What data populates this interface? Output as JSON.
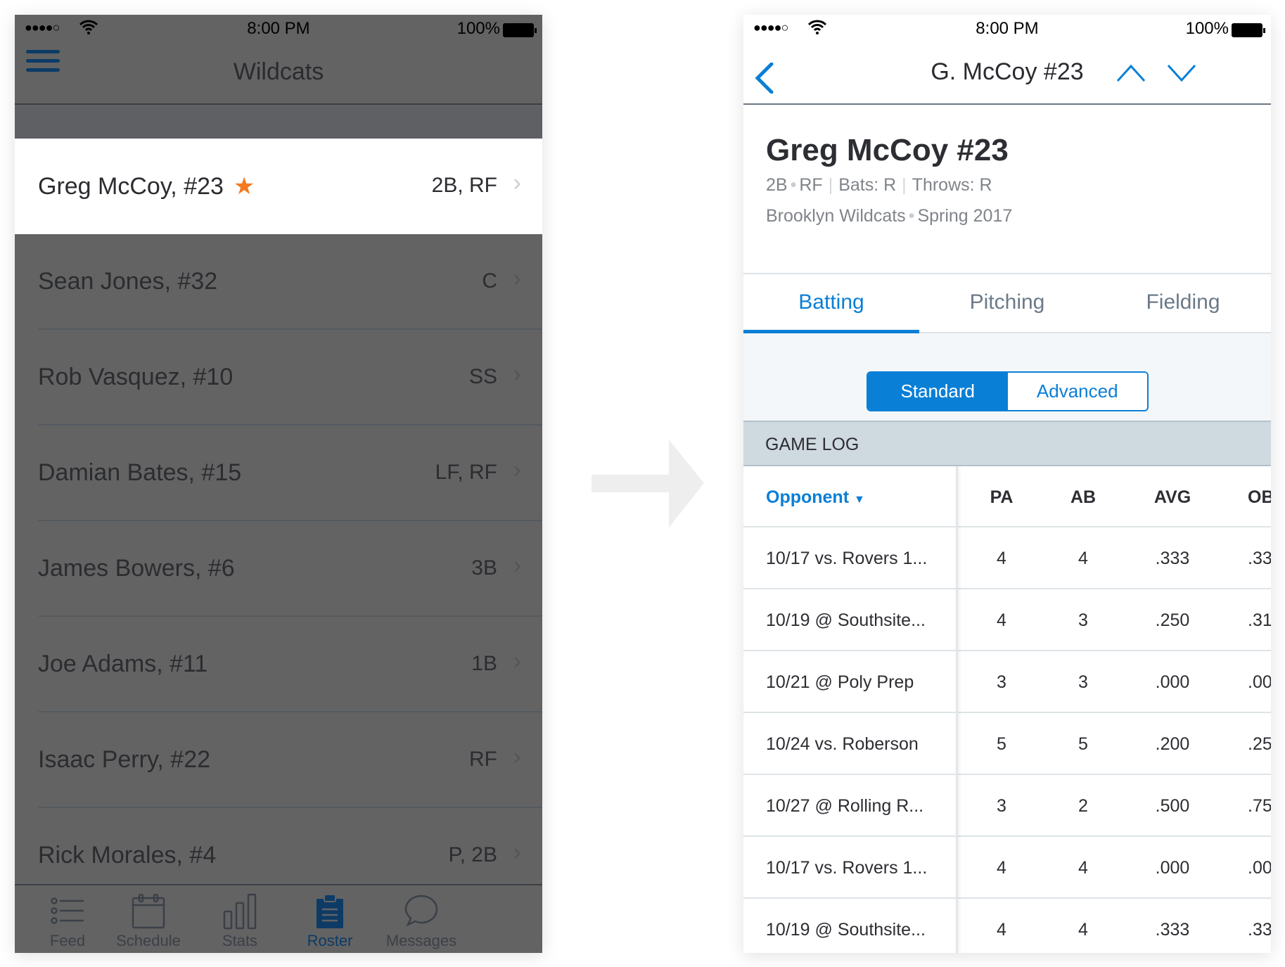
{
  "status": {
    "time": "8:00 PM",
    "battery": "100%",
    "signal": "●●●●○"
  },
  "left": {
    "title": "Wildcats",
    "players": [
      {
        "name": "Greg McCoy, #23",
        "pos": "2B, RF",
        "starred": true,
        "selected": true
      },
      {
        "name": "Sean Jones, #32",
        "pos": "C"
      },
      {
        "name": "Rob Vasquez, #10",
        "pos": "SS"
      },
      {
        "name": "Damian Bates, #15",
        "pos": "LF, RF"
      },
      {
        "name": "James Bowers, #6",
        "pos": "3B"
      },
      {
        "name": "Joe Adams, #11",
        "pos": "1B"
      },
      {
        "name": "Isaac Perry, #22",
        "pos": "RF"
      },
      {
        "name": "Rick Morales, #4",
        "pos": "P, 2B"
      }
    ],
    "tabs": [
      {
        "label": "Feed",
        "icon": "list-icon"
      },
      {
        "label": "Schedule",
        "icon": "calendar-icon"
      },
      {
        "label": "Stats",
        "icon": "bar-chart-icon"
      },
      {
        "label": "Roster",
        "icon": "clipboard-icon",
        "active": true
      },
      {
        "label": "Messages",
        "icon": "chat-bubble-icon"
      }
    ]
  },
  "right": {
    "nav_title": "G. McCoy #23",
    "name": "Greg McCoy #23",
    "pos1": "2B",
    "pos2": "RF",
    "bats": "Bats: R",
    "throws": "Throws: R",
    "team": "Brooklyn Wildcats",
    "season": "Spring 2017",
    "tabs": [
      "Batting",
      "Pitching",
      "Fielding"
    ],
    "segments": [
      "Standard",
      "Advanced"
    ],
    "section": "GAME LOG",
    "columns": [
      "Opponent",
      "PA",
      "AB",
      "AVG",
      "OB"
    ],
    "rows": [
      [
        "10/17 vs. Rovers 1...",
        "4",
        "4",
        ".333",
        ".33"
      ],
      [
        "10/19 @ Southsite...",
        "4",
        "3",
        ".250",
        ".31"
      ],
      [
        "10/21 @ Poly Prep",
        "3",
        "3",
        ".000",
        ".00"
      ],
      [
        "10/24 vs. Roberson",
        "5",
        "5",
        ".200",
        ".25"
      ],
      [
        "10/27 @ Rolling R...",
        "3",
        "2",
        ".500",
        ".75"
      ],
      [
        "10/17 vs. Rovers 1...",
        "4",
        "4",
        ".000",
        ".00"
      ],
      [
        "10/19 @ Southsite...",
        "4",
        "4",
        ".333",
        ".33"
      ]
    ]
  },
  "colors": {
    "accent": "#0a7fd6",
    "star": "#f47a20",
    "navy": "#0d3b66"
  }
}
